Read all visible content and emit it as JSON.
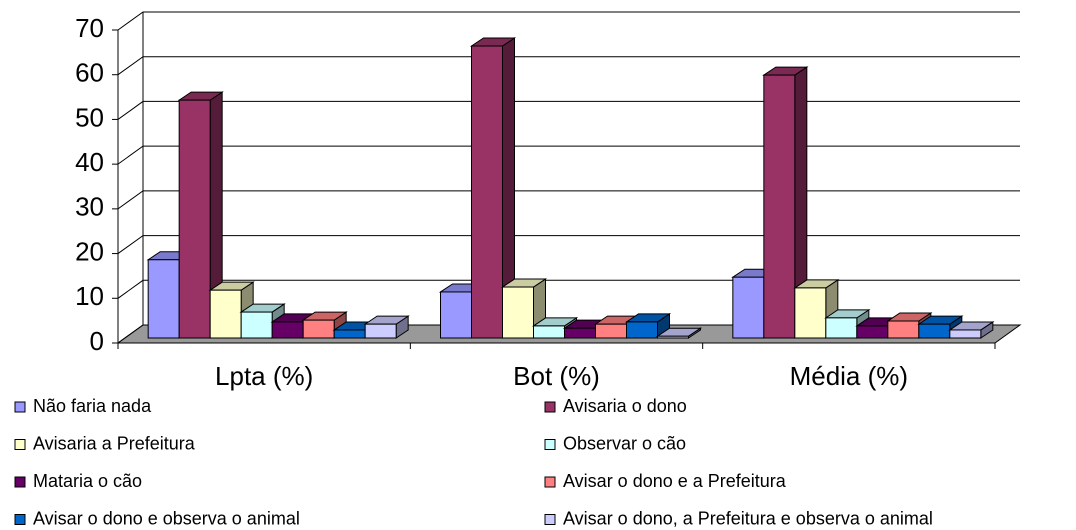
{
  "chart_data": {
    "type": "bar3d",
    "categories": [
      "Lpta (%)",
      "Bot (%)",
      "Média (%)"
    ],
    "series": [
      {
        "name": "Não faria nada",
        "color": "#9999ff",
        "values": [
          17.5,
          10.3,
          13.6
        ]
      },
      {
        "name": "Avisaria o dono",
        "color": "#993366",
        "values": [
          53.2,
          65.3,
          58.8
        ]
      },
      {
        "name": "Avisaria a Prefeitura",
        "color": "#ffffcc",
        "values": [
          10.7,
          11.4,
          11.2
        ]
      },
      {
        "name": "Observar o cão",
        "color": "#ccffff",
        "values": [
          5.8,
          2.7,
          4.5
        ]
      },
      {
        "name": "Mataria o cão",
        "color": "#660066",
        "values": [
          3.6,
          2.2,
          2.7
        ]
      },
      {
        "name": "Avisar o dono e a Prefeitura",
        "color": "#ff8080",
        "values": [
          4,
          3.1,
          3.8
        ]
      },
      {
        "name": "Avisar o dono e observa o animal",
        "color": "#0066cc",
        "values": [
          1.8,
          3.6,
          3.1
        ]
      },
      {
        "name": "Avisar o dono, a Prefeitura e observa o animal",
        "color": "#ccccff",
        "values": [
          3.1,
          0.4,
          1.8
        ]
      }
    ],
    "ylim": [
      0,
      70
    ],
    "yticks": [
      0,
      10,
      20,
      30,
      40,
      50,
      60,
      70
    ],
    "grid": true,
    "legend": "bottom"
  }
}
